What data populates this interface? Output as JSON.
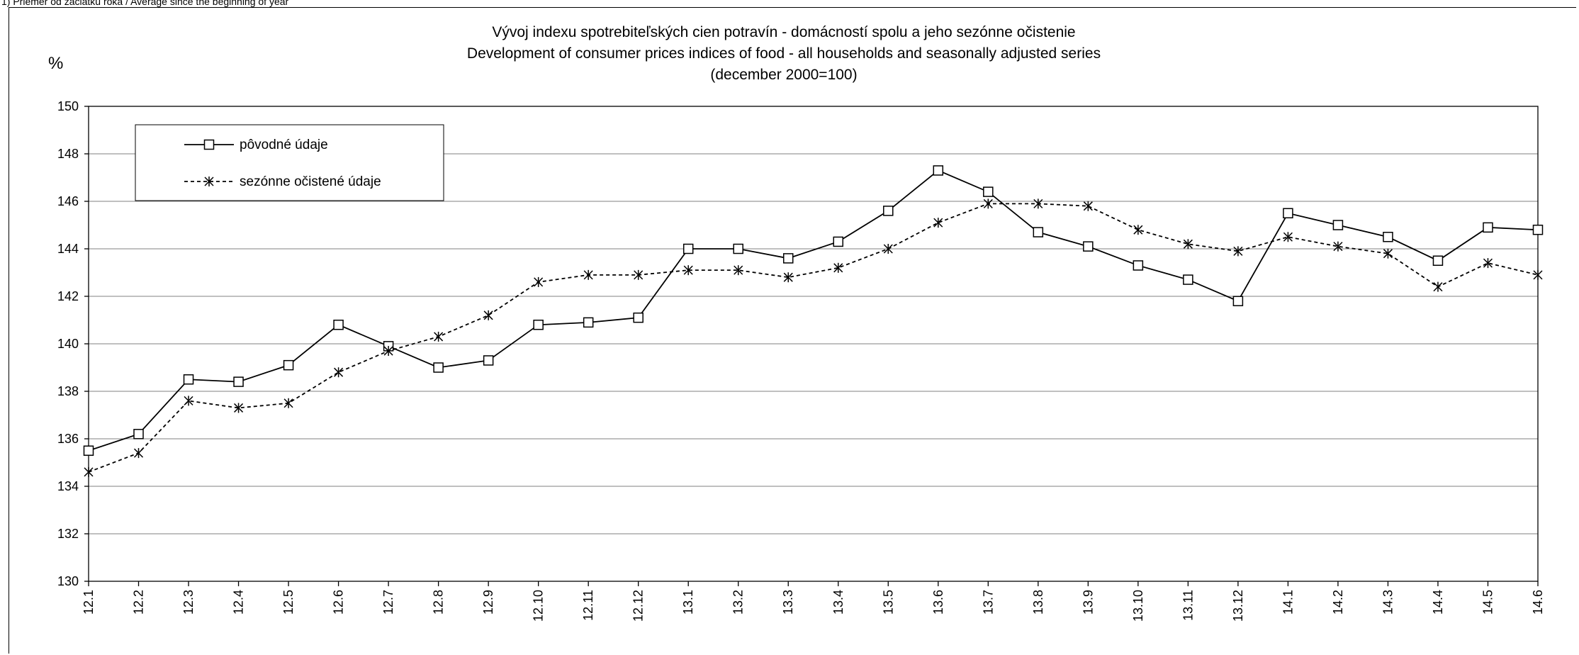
{
  "note": "1) Priemer od začiatku roka / Average since the beginning of year",
  "chart_data": {
    "type": "line",
    "title": "Vývoj indexu spotrebiteľských cien potravín - domácností spolu a jeho sezónne očistenie",
    "subtitle": "Development of consumer prices indices of food - all households and seasonally adjusted series",
    "subtitle2": "(december 2000=100)",
    "ylabel": "%",
    "xlabel": "",
    "ylim": [
      130,
      150
    ],
    "yticks": [
      130,
      132,
      134,
      136,
      138,
      140,
      142,
      144,
      146,
      148,
      150
    ],
    "grid": true,
    "legend_position": "top-left",
    "categories": [
      "12.1",
      "12.2",
      "12.3",
      "12.4",
      "12.5",
      "12.6",
      "12.7",
      "12.8",
      "12.9",
      "12.10",
      "12.11",
      "12.12",
      "13.1",
      "13.2",
      "13.3",
      "13.4",
      "13.5",
      "13.6",
      "13.7",
      "13.8",
      "13.9",
      "13.10",
      "13.11",
      "13.12",
      "14.1",
      "14.2",
      "14.3",
      "14.4",
      "14.5",
      "14.6"
    ],
    "series": [
      {
        "name": "pôvodné údaje",
        "marker": "square",
        "line": "solid",
        "color": "#000000",
        "values": [
          135.5,
          136.2,
          138.5,
          138.4,
          139.1,
          140.8,
          139.9,
          139.0,
          139.3,
          140.8,
          140.9,
          141.1,
          144.0,
          144.0,
          143.6,
          144.3,
          145.6,
          147.3,
          146.4,
          144.7,
          144.1,
          143.3,
          142.7,
          141.8,
          145.5,
          145.0,
          144.5,
          143.5,
          144.9,
          144.8
        ]
      },
      {
        "name": "sezónne očistené údaje",
        "marker": "asterisk",
        "line": "dashed",
        "color": "#000000",
        "values": [
          134.6,
          135.4,
          137.6,
          137.3,
          137.5,
          138.8,
          139.7,
          140.3,
          141.2,
          142.6,
          142.9,
          142.9,
          143.1,
          143.1,
          142.8,
          143.2,
          144.0,
          145.1,
          145.9,
          145.9,
          145.8,
          144.8,
          144.2,
          143.9,
          144.5,
          144.1,
          143.8,
          142.4,
          143.4,
          142.9
        ]
      }
    ]
  }
}
